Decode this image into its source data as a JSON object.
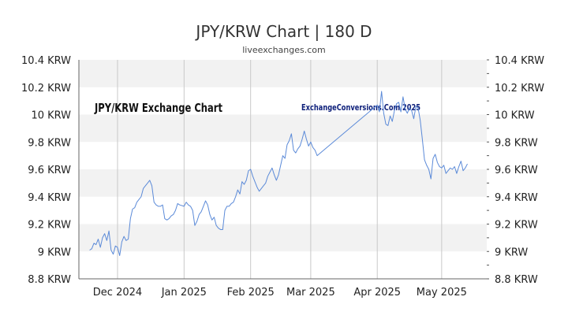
{
  "chart_data": {
    "type": "line",
    "title": "JPY/KRW Chart | 180 D",
    "subtitle": "liveexchanges.com",
    "xlabel": "",
    "ylabel": "",
    "ylim": [
      8.8,
      10.4
    ],
    "y_ticks": [
      8.8,
      9.0,
      9.2,
      9.4,
      9.6,
      9.8,
      10.0,
      10.2,
      10.4
    ],
    "y_tick_labels": [
      "8.8 KRW",
      "9 KRW",
      "9.2 KRW",
      "9.4 KRW",
      "9.6 KRW",
      "9.8 KRW",
      "10 KRW",
      "10.2 KRW",
      "10.4 KRW"
    ],
    "xlim": [
      "2024-11-13",
      "2025-05-22"
    ],
    "x_ticks": [
      {
        "date": "2024-12-01",
        "label": "Dec 2024"
      },
      {
        "date": "2025-01-01",
        "label": "Jan 2025"
      },
      {
        "date": "2025-02-01",
        "label": "Feb 2025"
      },
      {
        "date": "2025-03-01",
        "label": "Mar 2025"
      },
      {
        "date": "2025-04-01",
        "label": "Apr 2025"
      },
      {
        "date": "2025-05-01",
        "label": "May 2025"
      }
    ],
    "grid": true,
    "annotations": [
      "JPY/KRW Exchange Chart",
      "ExchangeConversions.Com 2025"
    ],
    "series": [
      {
        "color": "#5b8ad8",
        "points": [
          [
            "2024-11-18",
            9.01
          ],
          [
            "2024-11-19",
            9.02
          ],
          [
            "2024-11-20",
            9.06
          ],
          [
            "2024-11-21",
            9.05
          ],
          [
            "2024-11-22",
            9.09
          ],
          [
            "2024-11-23",
            9.03
          ],
          [
            "2024-11-24",
            9.1
          ],
          [
            "2024-11-25",
            9.13
          ],
          [
            "2024-11-26",
            9.08
          ],
          [
            "2024-11-27",
            9.15
          ],
          [
            "2024-11-28",
            9.01
          ],
          [
            "2024-11-29",
            8.98
          ],
          [
            "2024-11-30",
            9.04
          ],
          [
            "2024-12-01",
            9.03
          ],
          [
            "2024-12-02",
            8.97
          ],
          [
            "2024-12-03",
            9.07
          ],
          [
            "2024-12-04",
            9.11
          ],
          [
            "2024-12-05",
            9.08
          ],
          [
            "2024-12-06",
            9.09
          ],
          [
            "2024-12-07",
            9.24
          ],
          [
            "2024-12-08",
            9.31
          ],
          [
            "2024-12-09",
            9.32
          ],
          [
            "2024-12-10",
            9.36
          ],
          [
            "2024-12-11",
            9.38
          ],
          [
            "2024-12-12",
            9.4
          ],
          [
            "2024-12-13",
            9.46
          ],
          [
            "2024-12-14",
            9.48
          ],
          [
            "2024-12-15",
            9.5
          ],
          [
            "2024-12-16",
            9.52
          ],
          [
            "2024-12-17",
            9.48
          ],
          [
            "2024-12-18",
            9.36
          ],
          [
            "2024-12-19",
            9.34
          ],
          [
            "2024-12-20",
            9.33
          ],
          [
            "2024-12-21",
            9.33
          ],
          [
            "2024-12-22",
            9.34
          ],
          [
            "2024-12-23",
            9.24
          ],
          [
            "2024-12-24",
            9.23
          ],
          [
            "2024-12-25",
            9.24
          ],
          [
            "2024-12-26",
            9.26
          ],
          [
            "2024-12-27",
            9.27
          ],
          [
            "2024-12-28",
            9.3
          ],
          [
            "2024-12-29",
            9.35
          ],
          [
            "2024-12-30",
            9.34
          ],
          [
            "2025-01-01",
            9.33
          ],
          [
            "2025-01-02",
            9.36
          ],
          [
            "2025-01-03",
            9.34
          ],
          [
            "2025-01-04",
            9.33
          ],
          [
            "2025-01-05",
            9.3
          ],
          [
            "2025-01-06",
            9.19
          ],
          [
            "2025-01-07",
            9.22
          ],
          [
            "2025-01-08",
            9.27
          ],
          [
            "2025-01-09",
            9.29
          ],
          [
            "2025-01-10",
            9.33
          ],
          [
            "2025-01-11",
            9.37
          ],
          [
            "2025-01-12",
            9.34
          ],
          [
            "2025-01-13",
            9.27
          ],
          [
            "2025-01-14",
            9.23
          ],
          [
            "2025-01-15",
            9.25
          ],
          [
            "2025-01-16",
            9.19
          ],
          [
            "2025-01-17",
            9.17
          ],
          [
            "2025-01-18",
            9.16
          ],
          [
            "2025-01-19",
            9.16
          ],
          [
            "2025-01-20",
            9.3
          ],
          [
            "2025-01-21",
            9.33
          ],
          [
            "2025-01-22",
            9.33
          ],
          [
            "2025-01-23",
            9.35
          ],
          [
            "2025-01-24",
            9.36
          ],
          [
            "2025-01-25",
            9.4
          ],
          [
            "2025-01-26",
            9.45
          ],
          [
            "2025-01-27",
            9.42
          ],
          [
            "2025-01-28",
            9.51
          ],
          [
            "2025-01-29",
            9.49
          ],
          [
            "2025-01-30",
            9.52
          ],
          [
            "2025-01-31",
            9.59
          ],
          [
            "2025-02-01",
            9.6
          ],
          [
            "2025-02-02",
            9.55
          ],
          [
            "2025-02-03",
            9.51
          ],
          [
            "2025-02-04",
            9.47
          ],
          [
            "2025-02-05",
            9.44
          ],
          [
            "2025-02-06",
            9.46
          ],
          [
            "2025-02-07",
            9.48
          ],
          [
            "2025-02-08",
            9.5
          ],
          [
            "2025-02-09",
            9.55
          ],
          [
            "2025-02-10",
            9.58
          ],
          [
            "2025-02-11",
            9.61
          ],
          [
            "2025-02-12",
            9.56
          ],
          [
            "2025-02-13",
            9.52
          ],
          [
            "2025-02-14",
            9.56
          ],
          [
            "2025-02-15",
            9.63
          ],
          [
            "2025-02-16",
            9.7
          ],
          [
            "2025-02-17",
            9.68
          ],
          [
            "2025-02-18",
            9.78
          ],
          [
            "2025-02-19",
            9.81
          ],
          [
            "2025-02-20",
            9.86
          ],
          [
            "2025-02-21",
            9.74
          ],
          [
            "2025-02-22",
            9.72
          ],
          [
            "2025-02-23",
            9.75
          ],
          [
            "2025-02-24",
            9.77
          ],
          [
            "2025-02-25",
            9.82
          ],
          [
            "2025-02-26",
            9.88
          ],
          [
            "2025-02-27",
            9.82
          ],
          [
            "2025-02-28",
            9.77
          ],
          [
            "2025-03-01",
            9.8
          ],
          [
            "2025-03-02",
            9.76
          ],
          [
            "2025-03-03",
            9.74
          ],
          [
            "2025-03-04",
            9.7
          ],
          [
            "2025-04-01",
            10.07
          ],
          [
            "2025-04-02",
            10.02
          ],
          [
            "2025-04-03",
            10.17
          ],
          [
            "2025-04-04",
            10.01
          ],
          [
            "2025-04-05",
            9.93
          ],
          [
            "2025-04-06",
            9.92
          ],
          [
            "2025-04-07",
            9.99
          ],
          [
            "2025-04-08",
            9.95
          ],
          [
            "2025-04-09",
            10.03
          ],
          [
            "2025-04-10",
            10.08
          ],
          [
            "2025-04-11",
            10.09
          ],
          [
            "2025-04-12",
            10.02
          ],
          [
            "2025-04-13",
            10.13
          ],
          [
            "2025-04-14",
            10.04
          ],
          [
            "2025-04-15",
            10.01
          ],
          [
            "2025-04-16",
            10.05
          ],
          [
            "2025-04-17",
            10.03
          ],
          [
            "2025-04-18",
            9.97
          ],
          [
            "2025-04-19",
            10.06
          ],
          [
            "2025-04-20",
            10.05
          ],
          [
            "2025-04-21",
            9.96
          ],
          [
            "2025-04-22",
            9.82
          ],
          [
            "2025-04-23",
            9.67
          ],
          [
            "2025-04-24",
            9.63
          ],
          [
            "2025-04-25",
            9.6
          ],
          [
            "2025-04-26",
            9.53
          ],
          [
            "2025-04-27",
            9.68
          ],
          [
            "2025-04-28",
            9.71
          ],
          [
            "2025-04-29",
            9.65
          ],
          [
            "2025-04-30",
            9.62
          ],
          [
            "2025-05-01",
            9.61
          ],
          [
            "2025-05-02",
            9.63
          ],
          [
            "2025-05-03",
            9.57
          ],
          [
            "2025-05-04",
            9.59
          ],
          [
            "2025-05-05",
            9.61
          ],
          [
            "2025-05-06",
            9.6
          ],
          [
            "2025-05-07",
            9.62
          ],
          [
            "2025-05-08",
            9.57
          ],
          [
            "2025-05-09",
            9.62
          ],
          [
            "2025-05-10",
            9.66
          ],
          [
            "2025-05-11",
            9.59
          ],
          [
            "2025-05-12",
            9.61
          ],
          [
            "2025-05-13",
            9.64
          ]
        ]
      }
    ]
  },
  "colors": {
    "line": "#5b8ad8",
    "band": "#f2f2f2",
    "annotation_left": "#111111",
    "annotation_right": "#0d1f7a",
    "gridline": "#c9c9c9"
  }
}
